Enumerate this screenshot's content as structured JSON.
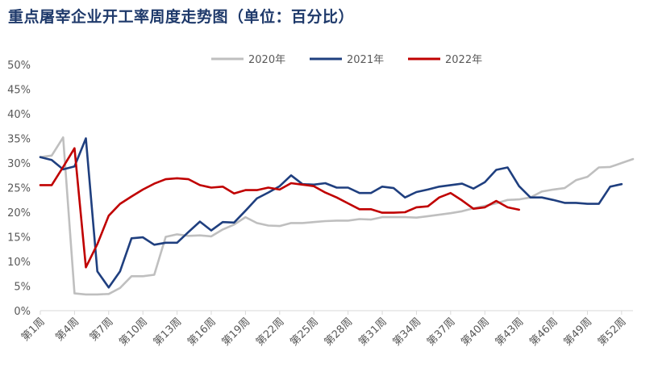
{
  "title": "重点屠宰企业开工率周度走势图（单位：百分比）",
  "chart_data": {
    "type": "line",
    "title": "重点屠宰企业开工率周度走势图（单位：百分比）",
    "xlabel": "",
    "ylabel": "",
    "ylim": [
      0,
      50
    ],
    "yticks": [
      "0%",
      "5%",
      "10%",
      "15%",
      "20%",
      "25%",
      "30%",
      "35%",
      "40%",
      "45%",
      "50%"
    ],
    "ytick_values": [
      0,
      5,
      10,
      15,
      20,
      25,
      30,
      35,
      40,
      45,
      50
    ],
    "x_tick_labels": [
      "第1周",
      "第4周",
      "第7周",
      "第10周",
      "第13周",
      "第16周",
      "第19周",
      "第22周",
      "第25周",
      "第28周",
      "第31周",
      "第34周",
      "第37周",
      "第40周",
      "第43周",
      "第46周",
      "第49周",
      "第52周"
    ],
    "x_tick_weeks": [
      1,
      4,
      7,
      10,
      13,
      16,
      19,
      22,
      25,
      28,
      31,
      34,
      37,
      40,
      43,
      46,
      49,
      52
    ],
    "legend_position": "top",
    "grid": false,
    "series": [
      {
        "name": "2020年",
        "color": "#bfbfbf",
        "x": [
          1,
          2,
          3,
          4,
          5,
          6,
          7,
          8,
          9,
          10,
          11,
          12,
          13,
          14,
          15,
          16,
          17,
          18,
          19,
          20,
          21,
          22,
          23,
          24,
          25,
          26,
          27,
          28,
          29,
          30,
          31,
          32,
          33,
          34,
          35,
          36,
          37,
          38,
          39,
          40,
          41,
          42,
          43,
          44,
          45,
          46,
          47,
          48,
          49,
          50,
          51,
          52,
          53
        ],
        "values": [
          31.2,
          31.5,
          35.2,
          3.5,
          3.3,
          3.3,
          3.4,
          4.6,
          7.0,
          7.0,
          7.3,
          15.0,
          15.5,
          15.2,
          15.3,
          15.1,
          16.5,
          17.5,
          19.0,
          17.8,
          17.3,
          17.2,
          17.8,
          17.8,
          18.0,
          18.2,
          18.3,
          18.3,
          18.6,
          18.5,
          19.0,
          19.0,
          19.0,
          18.9,
          19.2,
          19.5,
          19.8,
          20.2,
          20.8,
          21.3,
          21.8,
          22.5,
          22.6,
          23.0,
          24.2,
          24.6,
          24.9,
          26.5,
          27.2,
          29.1,
          29.2,
          30.0,
          30.8
        ]
      },
      {
        "name": "2021年",
        "color": "#1f3f7f",
        "x": [
          1,
          2,
          3,
          4,
          5,
          6,
          7,
          8,
          9,
          10,
          11,
          12,
          13,
          14,
          15,
          16,
          17,
          18,
          19,
          20,
          21,
          22,
          23,
          24,
          25,
          26,
          27,
          28,
          29,
          30,
          31,
          32,
          33,
          34,
          35,
          36,
          37,
          38,
          39,
          40,
          41,
          42,
          43,
          44,
          45,
          46,
          47,
          48,
          49,
          50,
          51,
          52
        ],
        "values": [
          31.2,
          30.6,
          28.7,
          29.3,
          35.0,
          8.0,
          4.7,
          8.0,
          14.7,
          14.9,
          13.4,
          13.8,
          13.8,
          16.0,
          18.1,
          16.3,
          18.0,
          17.9,
          20.3,
          22.8,
          24.0,
          25.3,
          27.5,
          25.7,
          25.6,
          25.9,
          25.0,
          25.0,
          23.9,
          23.9,
          25.2,
          24.9,
          23.0,
          24.1,
          24.6,
          25.2,
          25.5,
          25.8,
          24.8,
          26.1,
          28.6,
          29.1,
          25.3,
          23.0,
          23.0,
          22.5,
          21.9,
          21.9,
          21.7,
          21.7,
          25.2,
          25.7
        ]
      },
      {
        "name": "2022年",
        "color": "#c00000",
        "x": [
          1,
          2,
          3,
          4,
          5,
          6,
          7,
          8,
          9,
          10,
          11,
          12,
          13,
          14,
          15,
          16,
          17,
          18,
          19,
          20,
          21,
          22,
          23,
          24,
          25,
          26,
          27,
          28,
          29,
          30,
          31,
          32,
          33,
          34,
          35,
          36,
          37,
          38,
          39,
          40,
          41,
          42,
          43
        ],
        "values": [
          25.5,
          25.5,
          29.2,
          33.0,
          8.8,
          13.5,
          19.3,
          21.7,
          23.2,
          24.6,
          25.8,
          26.7,
          26.9,
          26.7,
          25.5,
          25.0,
          25.2,
          23.8,
          24.5,
          24.5,
          25.0,
          24.6,
          25.9,
          25.6,
          25.3,
          24.0,
          23.0,
          21.8,
          20.6,
          20.6,
          19.9,
          19.9,
          20.0,
          21.0,
          21.2,
          23.0,
          23.9,
          22.4,
          20.7,
          21.0,
          22.3,
          21.0,
          20.5
        ]
      }
    ]
  }
}
